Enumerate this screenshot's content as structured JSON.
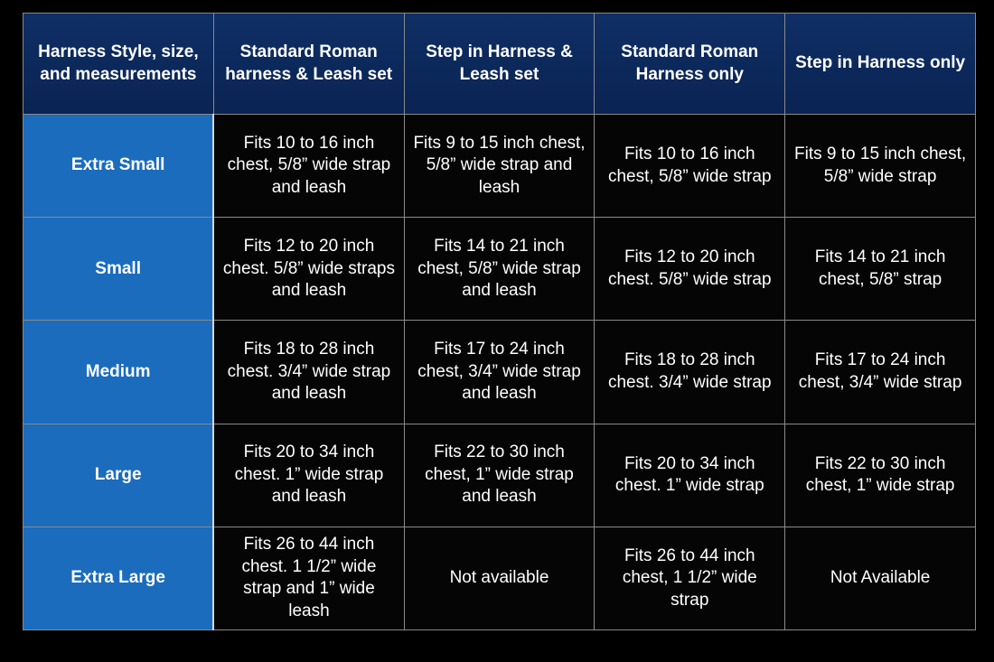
{
  "table": {
    "header": [
      "Harness Style, size, and measurements",
      "Standard Roman harness & Leash set",
      "Step in Harness & Leash set",
      "Standard Roman Harness only",
      "Step in Harness only"
    ],
    "rows": [
      [
        "Extra Small",
        "Fits 10 to 16 inch chest, 5/8” wide strap and leash",
        "Fits 9 to 15 inch chest, 5/8” wide strap and leash",
        "Fits 10 to 16 inch chest, 5/8” wide strap",
        "Fits 9 to 15 inch chest, 5/8” wide strap"
      ],
      [
        "Small",
        "Fits 12 to 20 inch chest. 5/8” wide straps and leash",
        "Fits 14 to 21 inch chest, 5/8” wide strap and leash",
        "Fits 12 to 20 inch chest. 5/8” wide strap",
        "Fits 14 to 21 inch chest, 5/8” strap"
      ],
      [
        "Medium",
        "Fits 18 to 28 inch chest. 3/4” wide strap and leash",
        "Fits 17 to 24 inch chest, 3/4” wide strap and leash",
        "Fits 18 to 28 inch chest. 3/4” wide strap",
        "Fits 17 to 24 inch chest, 3/4” wide strap"
      ],
      [
        "Large",
        "Fits 20 to 34 inch chest. 1” wide strap and leash",
        "Fits 22 to 30 inch chest, 1” wide strap and leash",
        "Fits 20 to 34 inch chest. 1” wide strap",
        "Fits 22 to 30 inch chest, 1” wide strap"
      ],
      [
        "Extra Large",
        "Fits 26 to 44 inch chest. 1 1/2” wide strap and 1” wide leash",
        "Not available",
        "Fits 26 to 44 inch chest, 1 1/2” wide strap",
        "Not Available"
      ]
    ]
  }
}
